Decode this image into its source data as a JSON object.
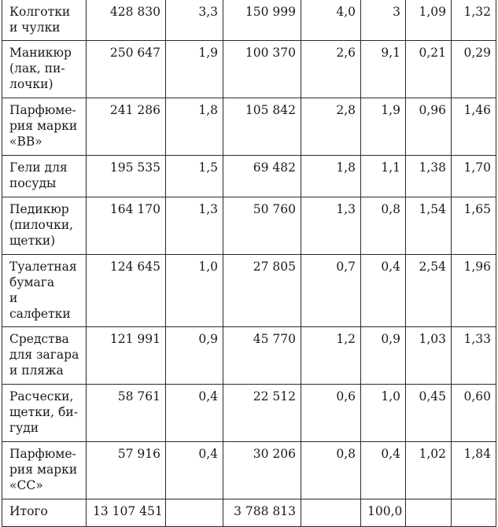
{
  "table": {
    "rows": [
      {
        "name": "Колготки\nи чулки",
        "v1": "428 830",
        "v2": "3,3",
        "v3": "150 999",
        "v4": "4,0",
        "v5": "3",
        "v6": "1,09",
        "v7": "1,32"
      },
      {
        "name": "Маникюр\n(лак, пи-\nлочки)",
        "v1": "250 647",
        "v2": "1,9",
        "v3": "100 370",
        "v4": "2,6",
        "v5": "9,1",
        "v6": "0,21",
        "v7": "0,29"
      },
      {
        "name": "Парфюме-\nрия марки\n«ВВ»",
        "v1": "241 286",
        "v2": "1,8",
        "v3": "105 842",
        "v4": "2,8",
        "v5": "1,9",
        "v6": "0,96",
        "v7": "1,46"
      },
      {
        "name": "Гели для\nпосуды",
        "v1": "195 535",
        "v2": "1,5",
        "v3": "69 482",
        "v4": "1,8",
        "v5": "1,1",
        "v6": "1,38",
        "v7": "1,70"
      },
      {
        "name": "Педикюр\n(пилочки,\nщетки)",
        "v1": "164 170",
        "v2": "1,3",
        "v3": "50 760",
        "v4": "1,3",
        "v5": "0,8",
        "v6": "1,54",
        "v7": "1,65"
      },
      {
        "name": "Туалетная\nбумага\nи салфетки",
        "v1": "124 645",
        "v2": "1,0",
        "v3": "27 805",
        "v4": "0,7",
        "v5": "0,4",
        "v6": "2,54",
        "v7": "1,96"
      },
      {
        "name": "Средства\nдля загара\nи пляжа",
        "v1": "121 991",
        "v2": "0,9",
        "v3": "45 770",
        "v4": "1,2",
        "v5": "0,9",
        "v6": "1,03",
        "v7": "1,33"
      },
      {
        "name": "Расчески,\nщетки, би-\nгуди",
        "v1": "58 761",
        "v2": "0,4",
        "v3": "22 512",
        "v4": "0,6",
        "v5": "1,0",
        "v6": "0,45",
        "v7": "0,60"
      },
      {
        "name": "Парфюме-\nрия марки\n«СС»",
        "v1": "57 916",
        "v2": "0,4",
        "v3": "30 206",
        "v4": "0,8",
        "v5": "0,4",
        "v6": "1,02",
        "v7": "1,84"
      }
    ],
    "total": {
      "name": "Итого",
      "v1": "13 107 451",
      "v2": "",
      "v3": "3 788 813",
      "v4": "",
      "v5": "100,0",
      "v6": "",
      "v7": ""
    }
  }
}
